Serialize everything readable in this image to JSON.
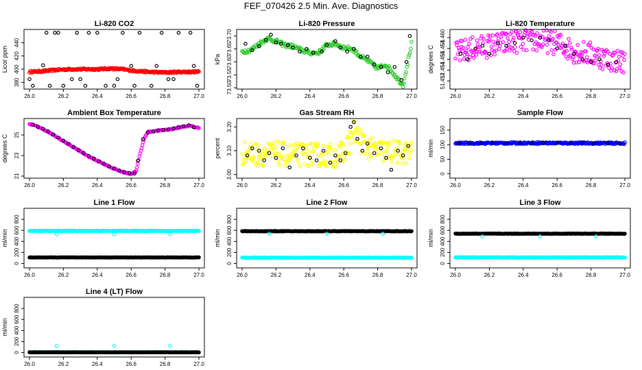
{
  "title": "FEF_070426  2.5 Min. Ave. Diagnostics",
  "chart_data": [
    {
      "type": "scatter",
      "title": "Li-820 CO2",
      "ylabel": "Licor ppm",
      "xlim": [
        26.0,
        27.0
      ],
      "xticks": [
        26.0,
        26.2,
        26.4,
        26.6,
        26.8,
        27.0
      ],
      "ylim": [
        370,
        460
      ],
      "yticks": [
        380,
        400,
        420,
        440
      ],
      "series": [
        {
          "color": "#ff0000",
          "marker": "dot",
          "kind": "band",
          "x": [
            26.0,
            26.08,
            26.16,
            26.24,
            26.32,
            26.4,
            26.48,
            26.55,
            26.6,
            26.7,
            26.8,
            26.9,
            27.0
          ],
          "y": [
            396,
            397,
            399,
            400,
            400,
            400,
            401,
            400,
            398,
            396,
            395,
            396,
            396
          ],
          "jitter": 1.4
        },
        {
          "color": "#000000",
          "marker": "ring",
          "x": [
            26.0,
            26.02,
            26.08,
            26.1,
            26.12,
            26.15,
            26.17,
            26.2,
            26.25,
            26.28,
            26.3,
            26.33,
            26.35,
            26.4,
            26.45,
            26.5,
            26.52,
            26.55,
            26.6,
            26.62,
            26.65,
            26.72,
            26.75,
            26.78,
            26.82,
            26.85,
            26.88,
            26.95,
            26.97,
            26.99
          ],
          "y": [
            385,
            375,
            406,
            455,
            375,
            455,
            455,
            375,
            385,
            455,
            385,
            375,
            455,
            455,
            375,
            375,
            385,
            455,
            405,
            375,
            455,
            375,
            405,
            455,
            385,
            385,
            455,
            455,
            405,
            375
          ]
        }
      ]
    },
    {
      "type": "scatter",
      "title": "Li-820 Pressure",
      "ylabel": "kPa",
      "xlim": [
        26.0,
        27.0
      ],
      "xticks": [
        26.0,
        26.2,
        26.4,
        26.6,
        26.8,
        27.0
      ],
      "ylim": [
        73.495,
        73.725
      ],
      "yticks": [
        73.5,
        73.55,
        73.6,
        73.65,
        73.7
      ],
      "ytick_labels": [
        "73.50",
        "73.55",
        "73.60",
        "73.65",
        "73.70"
      ],
      "series": [
        {
          "color": "#33cc33",
          "marker": "ring",
          "kind": "line",
          "x": [
            26.0,
            26.05,
            26.1,
            26.15,
            26.2,
            26.25,
            26.3,
            26.35,
            26.4,
            26.45,
            26.5,
            26.55,
            26.6,
            26.65,
            26.7,
            26.75,
            26.8,
            26.85,
            26.9,
            26.95,
            27.0
          ],
          "y": [
            73.64,
            73.645,
            73.67,
            73.69,
            73.68,
            73.665,
            73.66,
            73.645,
            73.635,
            73.635,
            73.665,
            73.67,
            73.655,
            73.65,
            73.62,
            73.6,
            73.575,
            73.59,
            73.55,
            73.51,
            73.67
          ],
          "jitter": 0.008
        },
        {
          "color": "#000000",
          "marker": "ring",
          "x": [
            26.02,
            26.06,
            26.1,
            26.14,
            26.17,
            26.2,
            26.23,
            26.27,
            26.3,
            26.34,
            26.38,
            26.42,
            26.47,
            26.5,
            26.55,
            26.58,
            26.62,
            26.66,
            26.7,
            26.74,
            26.78,
            26.82,
            26.86,
            26.9,
            26.94,
            26.97,
            26.99
          ],
          "y": [
            73.67,
            73.645,
            73.66,
            73.685,
            73.705,
            73.675,
            73.67,
            73.665,
            73.655,
            73.64,
            73.65,
            73.635,
            73.64,
            73.665,
            73.68,
            73.655,
            73.64,
            73.65,
            73.62,
            73.62,
            73.59,
            73.58,
            73.56,
            73.58,
            73.53,
            73.6,
            73.7
          ]
        }
      ]
    },
    {
      "type": "scatter",
      "title": "Li-820 Temperature",
      "ylabel": "degrees C",
      "xlim": [
        26.0,
        27.0
      ],
      "xticks": [
        26.0,
        26.2,
        26.4,
        26.6,
        26.8,
        27.0
      ],
      "ylim": [
        51.4505,
        51.4615
      ],
      "yticks": [
        51.452,
        51.454,
        51.456,
        51.458,
        51.46
      ],
      "ytick_labels": [
        "51.452",
        "51.454",
        "51.456",
        "51.458",
        "51.460"
      ],
      "series": [
        {
          "color": "#ff00ff",
          "marker": "ring",
          "kind": "band",
          "x": [
            26.0,
            26.1,
            26.2,
            26.3,
            26.4,
            26.5,
            26.6,
            26.7,
            26.8,
            26.9,
            27.0
          ],
          "y": [
            51.457,
            51.458,
            51.4585,
            51.459,
            51.4595,
            51.4595,
            51.459,
            51.4575,
            51.457,
            51.456,
            51.4555
          ],
          "jitter": 0.0022
        },
        {
          "color": "#000000",
          "marker": "ring",
          "x": [
            26.03,
            26.07,
            26.12,
            26.16,
            26.2,
            26.25,
            26.3,
            26.35,
            26.4,
            26.45,
            26.5,
            26.55,
            26.6,
            26.65,
            26.7,
            26.75,
            26.8,
            26.85,
            26.9,
            26.95
          ],
          "y": [
            51.457,
            51.456,
            51.458,
            51.4585,
            51.457,
            51.459,
            51.4585,
            51.459,
            51.46,
            51.4595,
            51.46,
            51.4595,
            51.458,
            51.4585,
            51.457,
            51.456,
            51.4555,
            51.456,
            51.455,
            51.4555
          ]
        }
      ]
    },
    {
      "type": "scatter",
      "title": "Ambient Box Temperature",
      "ylabel": "degrees C",
      "xlim": [
        26.0,
        27.0
      ],
      "xticks": [
        26.0,
        26.2,
        26.4,
        26.6,
        26.8,
        27.0
      ],
      "ylim": [
        20.8,
        26.6
      ],
      "yticks": [
        21,
        23,
        25
      ],
      "series": [
        {
          "color": "#ff00ff",
          "marker": "ring",
          "kind": "line",
          "x": [
            26.0,
            26.05,
            26.1,
            26.15,
            26.2,
            26.25,
            26.3,
            26.35,
            26.4,
            26.45,
            26.5,
            26.55,
            26.6,
            26.63,
            26.65,
            26.68,
            26.7,
            26.75,
            26.8,
            26.85,
            26.9,
            26.95,
            26.99
          ],
          "y": [
            26.1,
            25.8,
            25.4,
            24.9,
            24.4,
            23.9,
            23.4,
            22.9,
            22.5,
            22.1,
            21.7,
            21.4,
            21.2,
            21.5,
            23.0,
            24.8,
            25.3,
            25.4,
            25.5,
            25.6,
            25.8,
            25.9,
            25.7
          ],
          "jitter": 0.05
        },
        {
          "color": "#000000",
          "marker": "ring",
          "x": [
            26.02,
            26.05,
            26.08,
            26.11,
            26.14,
            26.17,
            26.2,
            26.23,
            26.26,
            26.29,
            26.32,
            26.35,
            26.38,
            26.41,
            26.44,
            26.47,
            26.5,
            26.53,
            26.56,
            26.59,
            26.62,
            26.64,
            26.67,
            26.7,
            26.73,
            26.76,
            26.79,
            26.82,
            26.85,
            26.88,
            26.91,
            26.94,
            26.97
          ],
          "y": [
            26.0,
            25.8,
            25.6,
            25.35,
            25.05,
            24.75,
            24.45,
            24.15,
            23.85,
            23.55,
            23.25,
            22.95,
            22.7,
            22.45,
            22.2,
            21.95,
            21.75,
            21.55,
            21.4,
            21.3,
            21.25,
            22.5,
            24.6,
            25.25,
            25.35,
            25.45,
            25.5,
            25.55,
            25.65,
            25.75,
            25.85,
            25.95,
            25.75
          ]
        }
      ]
    },
    {
      "type": "scatter",
      "title": "Gas Stream RH",
      "ylabel": "percent",
      "xlim": [
        26.0,
        27.0
      ],
      "xticks": [
        26.0,
        26.2,
        26.4,
        26.6,
        26.8,
        27.0
      ],
      "ylim": [
        2.985,
        3.235
      ],
      "yticks": [
        3.0,
        3.1,
        3.2
      ],
      "ytick_labels": [
        "3.00",
        "3.10",
        "3.20"
      ],
      "series": [
        {
          "color": "#ffff00",
          "marker": "ring",
          "kind": "band",
          "x": [
            26.0,
            26.1,
            26.2,
            26.3,
            26.4,
            26.5,
            26.55,
            26.6,
            26.63,
            26.66,
            26.7,
            26.75,
            26.8,
            26.9,
            27.0
          ],
          "y": [
            3.09,
            3.085,
            3.09,
            3.08,
            3.085,
            3.08,
            3.08,
            3.09,
            3.13,
            3.19,
            3.14,
            3.11,
            3.1,
            3.095,
            3.09
          ],
          "jitter": 0.05
        },
        {
          "color": "#000000",
          "marker": "ring",
          "x": [
            26.03,
            26.06,
            26.1,
            26.13,
            26.16,
            26.2,
            26.24,
            26.28,
            26.32,
            26.36,
            26.4,
            26.44,
            26.48,
            26.52,
            26.55,
            26.58,
            26.61,
            26.64,
            26.66,
            26.68,
            26.71,
            26.74,
            26.78,
            26.82,
            26.85,
            26.88,
            26.92,
            26.95,
            26.98
          ],
          "y": [
            3.08,
            3.11,
            3.1,
            3.06,
            3.09,
            3.07,
            3.11,
            3.03,
            3.08,
            3.11,
            3.07,
            3.06,
            3.1,
            3.05,
            3.08,
            3.06,
            3.09,
            3.2,
            3.22,
            3.15,
            3.1,
            3.13,
            3.09,
            3.11,
            3.07,
            3.02,
            3.1,
            3.08,
            3.12
          ]
        }
      ]
    },
    {
      "type": "scatter",
      "title": "Sample Flow",
      "ylabel": "ml/min",
      "xlim": [
        26.0,
        27.0
      ],
      "xticks": [
        26.0,
        26.2,
        26.4,
        26.6,
        26.8,
        27.0
      ],
      "ylim": [
        -15,
        190
      ],
      "yticks": [
        0,
        50,
        100,
        150
      ],
      "series": [
        {
          "color": "#0000ff",
          "marker": "ring",
          "kind": "band",
          "x": [
            26.0,
            26.5,
            27.0
          ],
          "y": [
            105,
            106,
            105
          ],
          "jitter": 3
        },
        {
          "color": "#000000",
          "marker": "ring",
          "x": [
            26.02,
            26.08,
            26.15,
            26.22,
            26.3,
            26.38,
            26.45,
            26.52,
            26.6,
            26.68,
            26.75,
            26.82,
            26.9,
            26.97
          ],
          "y": [
            104,
            106,
            105,
            107,
            105,
            106,
            104,
            107,
            106,
            105,
            106,
            104,
            105,
            104
          ]
        }
      ]
    },
    {
      "type": "scatter",
      "title": "Line 1 Flow",
      "ylabel": "ml/min",
      "xlim": [
        26.0,
        27.0
      ],
      "xticks": [
        26.0,
        26.2,
        26.4,
        26.6,
        26.8,
        27.0
      ],
      "ylim": [
        -80,
        1000
      ],
      "yticks": [
        0,
        200,
        400,
        600,
        800
      ],
      "series": [
        {
          "color": "#00ffff",
          "marker": "ring",
          "kind": "band",
          "x": [
            26.0,
            27.0
          ],
          "y": [
            590,
            590
          ],
          "jitter": 6
        },
        {
          "color": "#00ffff",
          "marker": "ring",
          "x": [
            26.16,
            26.5,
            26.83
          ],
          "y": [
            530,
            530,
            530
          ]
        },
        {
          "color": "#000000",
          "marker": "ring",
          "kind": "band",
          "x": [
            26.0,
            27.0
          ],
          "y": [
            110,
            110
          ],
          "jitter": 3
        }
      ]
    },
    {
      "type": "scatter",
      "title": "Line 2 Flow",
      "ylabel": "ml/min",
      "xlim": [
        26.0,
        27.0
      ],
      "xticks": [
        26.0,
        26.2,
        26.4,
        26.6,
        26.8,
        27.0
      ],
      "ylim": [
        -80,
        1000
      ],
      "yticks": [
        0,
        200,
        400,
        600,
        800
      ],
      "series": [
        {
          "color": "#000000",
          "marker": "ring",
          "kind": "band",
          "x": [
            26.0,
            27.0
          ],
          "y": [
            585,
            585
          ],
          "jitter": 4
        },
        {
          "color": "#00ffff",
          "marker": "ring",
          "x": [
            26.16,
            26.5,
            26.83
          ],
          "y": [
            540,
            540,
            540
          ]
        },
        {
          "color": "#00ffff",
          "marker": "ring",
          "kind": "band",
          "x": [
            26.0,
            27.0
          ],
          "y": [
            105,
            105
          ],
          "jitter": 5
        }
      ]
    },
    {
      "type": "scatter",
      "title": "Line 3 Flow",
      "ylabel": "ml/min",
      "xlim": [
        26.0,
        27.0
      ],
      "xticks": [
        26.0,
        26.2,
        26.4,
        26.6,
        26.8,
        27.0
      ],
      "ylim": [
        -80,
        1000
      ],
      "yticks": [
        0,
        200,
        400,
        600,
        800
      ],
      "series": [
        {
          "color": "#000000",
          "marker": "ring",
          "kind": "band",
          "x": [
            26.0,
            27.0
          ],
          "y": [
            540,
            540
          ],
          "jitter": 4
        },
        {
          "color": "#00ffff",
          "marker": "ring",
          "x": [
            26.16,
            26.5,
            26.83
          ],
          "y": [
            490,
            490,
            490
          ]
        },
        {
          "color": "#00ffff",
          "marker": "ring",
          "kind": "band",
          "x": [
            26.0,
            27.0
          ],
          "y": [
            110,
            110
          ],
          "jitter": 5
        }
      ]
    },
    {
      "type": "scatter",
      "title": "Line 4 (LT) Flow",
      "ylabel": "ml/min",
      "xlim": [
        26.0,
        27.0
      ],
      "xticks": [
        26.0,
        26.2,
        26.4,
        26.6,
        26.8,
        27.0
      ],
      "ylim": [
        -80,
        1000
      ],
      "yticks": [
        0,
        200,
        400,
        600,
        800
      ],
      "series": [
        {
          "color": "#00ffff",
          "marker": "ring",
          "kind": "band",
          "x": [
            26.0,
            27.0
          ],
          "y": [
            5,
            5
          ],
          "jitter": 3
        },
        {
          "color": "#000000",
          "marker": "ring",
          "kind": "band",
          "x": [
            26.0,
            27.0
          ],
          "y": [
            5,
            5
          ],
          "jitter": 2
        },
        {
          "color": "#00ffff",
          "marker": "ring",
          "x": [
            26.16,
            26.5,
            26.83
          ],
          "y": [
            120,
            120,
            120
          ]
        }
      ]
    }
  ]
}
